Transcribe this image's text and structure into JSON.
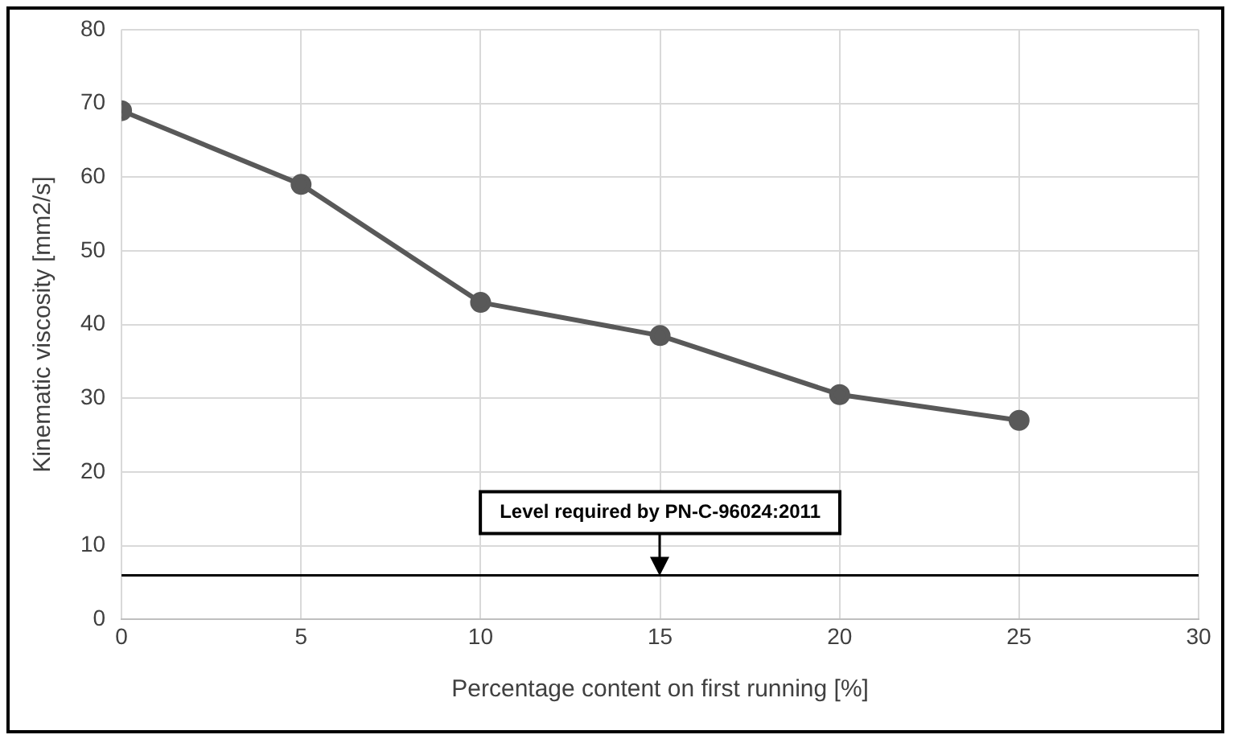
{
  "chart_data": {
    "type": "line",
    "xlabel": "Percentage content on first running [%]",
    "ylabel": "Kinematic viscosity [mm2/s]",
    "x": [
      0,
      5,
      10,
      15,
      20,
      25
    ],
    "series": [
      {
        "color": "#595959",
        "values": [
          69,
          59,
          43,
          38.5,
          30.5,
          27
        ]
      }
    ],
    "xlim": [
      0,
      30
    ],
    "xticks": [
      0,
      5,
      10,
      15,
      20,
      25,
      30
    ],
    "ylim": [
      0,
      80
    ],
    "yticks": [
      0,
      10,
      20,
      30,
      40,
      50,
      60,
      70,
      80
    ],
    "ref_lines": [
      {
        "axis": "y",
        "value": 6,
        "color": "#000000"
      }
    ],
    "annotations": [
      {
        "text": "Level required by PN-C-96024:2011",
        "x": 15,
        "y": 6
      }
    ],
    "grid": true,
    "legend": false,
    "marker": "circle",
    "line_style": "solid"
  }
}
